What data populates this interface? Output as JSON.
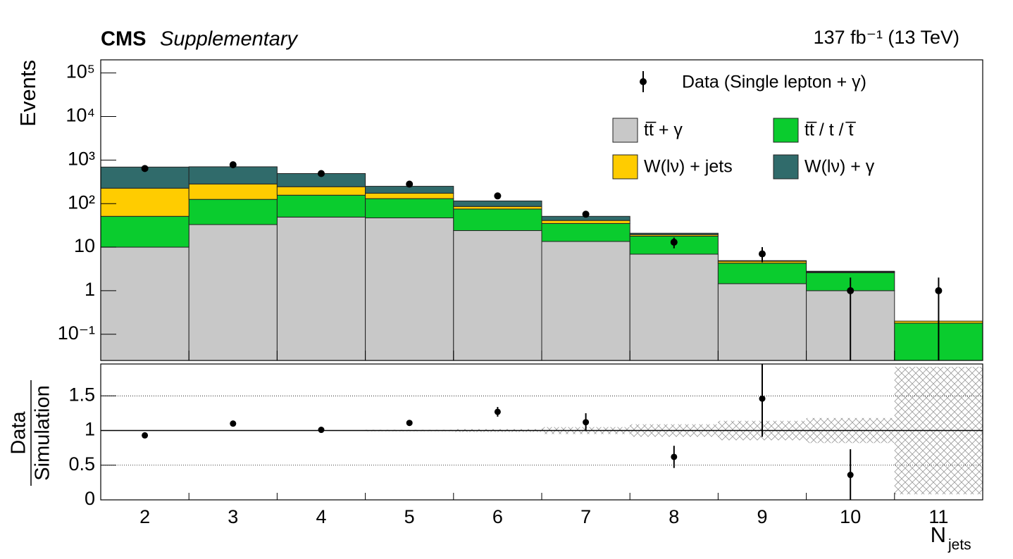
{
  "chart_data": [
    {
      "type": "stacked_histogram",
      "title": "CMS",
      "subtitle": "Supplementary",
      "lumi": "137 fb⁻¹ (13 TeV)",
      "ylabel": "Events",
      "log_y": true,
      "legend": "upper right",
      "ylim": [
        0.025,
        200000
      ],
      "yticks": [
        {
          "value": 0.1,
          "label": "10⁻¹"
        },
        1,
        10,
        {
          "value": 100,
          "label": "10²"
        },
        {
          "value": 1000,
          "label": "10³"
        },
        {
          "value": 10000,
          "label": "10⁴"
        },
        {
          "value": 100000,
          "label": "10⁵"
        }
      ],
      "series": [
        {
          "name": "tt̅ + γ",
          "color": "#c8c8c8",
          "values": [
            10,
            33,
            49,
            47,
            24,
            13.5,
            6.9,
            1.45,
            1.0,
            0
          ]
        },
        {
          "name": "tt̅ / t / t̅",
          "color": "#0acc2e",
          "values": [
            41,
            92,
            107,
            83,
            51,
            21.5,
            11,
            2.85,
            1.6,
            0.18
          ]
        },
        {
          "name": "W(lν) + jets",
          "color": "#ffcc00",
          "values": [
            175,
            157,
            88,
            43,
            11,
            6,
            1.5,
            0.45,
            0.1,
            0.02
          ]
        },
        {
          "name": "W(lν) + γ",
          "color": "#306b6b",
          "values": [
            464,
            418,
            246,
            77,
            29,
            10,
            1.5,
            0.15,
            0.1,
            0
          ]
        }
      ],
      "data": {
        "name": "Data (Single lepton + γ)",
        "color": "#000000",
        "values": [
          640,
          780,
          490,
          280,
          150,
          57,
          13,
          7,
          1,
          1
        ],
        "err_low": [
          25,
          28,
          22,
          17,
          12,
          7.5,
          3.6,
          2.5,
          1,
          1
        ],
        "err_high": [
          25,
          28,
          22,
          17,
          12,
          7.5,
          3.6,
          3,
          1,
          1
        ]
      }
    },
    {
      "type": "ratio",
      "ylabel_numerator": "Data",
      "ylabel_denominator": "Simulation",
      "xlabel": "N",
      "xlabel_subscript": "jets",
      "categories": [
        "2",
        "3",
        "4",
        "5",
        "6",
        "7",
        "8",
        "9",
        "10",
        "11"
      ],
      "ylim": [
        0,
        1.96
      ],
      "yticks": [
        0,
        0.5,
        1,
        1.5
      ],
      "grid": true,
      "values": [
        0.93,
        1.1,
        1.01,
        1.11,
        1.27,
        1.12,
        0.62,
        1.46,
        0.36,
        null
      ],
      "errors": [
        0.02,
        0.02,
        0.02,
        0.04,
        0.07,
        0.13,
        0.16,
        0.55,
        0.37,
        null
      ],
      "unc": [
        0.005,
        0.005,
        0.005,
        0.01,
        0.02,
        0.05,
        0.09,
        0.14,
        0.18,
        0.92
      ],
      "unc_color": "#9a9a9a"
    }
  ]
}
